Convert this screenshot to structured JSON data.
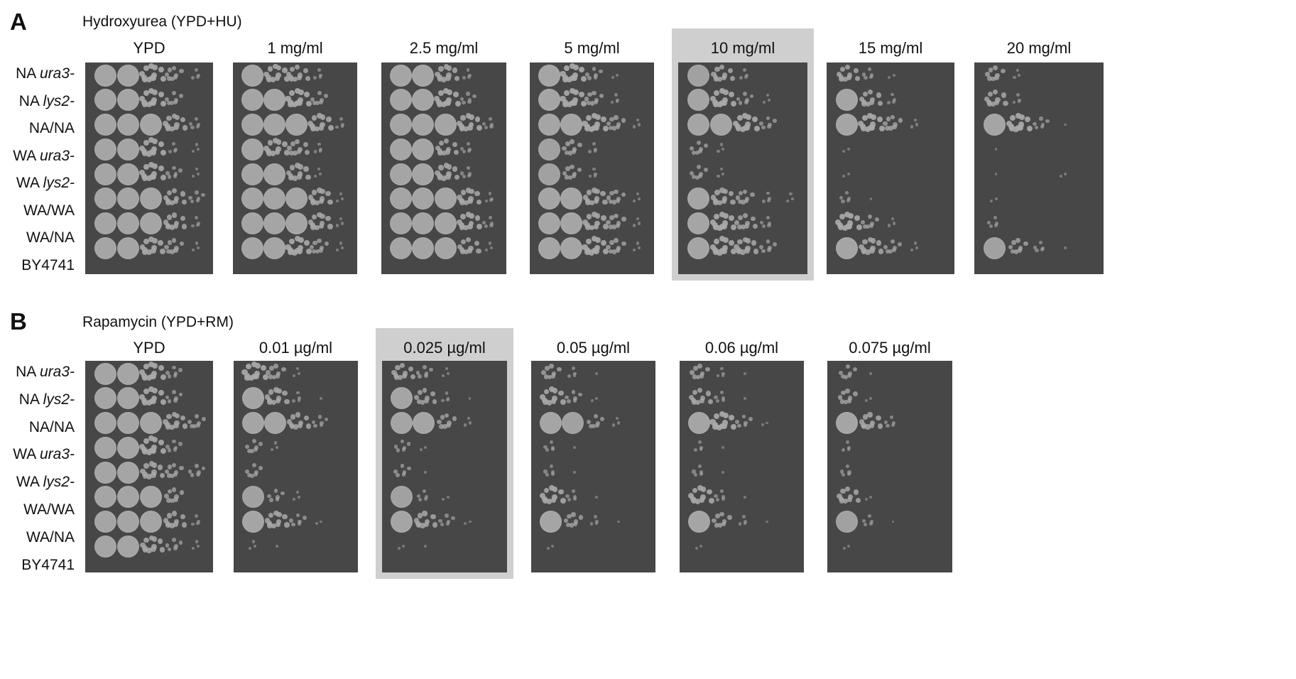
{
  "panelA": {
    "letter": "A",
    "title": "Hydroxyurea (YPD+HU)",
    "highlight_index": 4,
    "plates": [
      {
        "label": "YPD",
        "growth": [
          [
            1,
            1,
            0.85,
            0.55,
            0.3
          ],
          [
            1,
            1,
            0.85,
            0.5,
            0
          ],
          [
            1,
            1,
            1,
            0.75,
            0.35
          ],
          [
            1,
            1,
            0.85,
            0.3,
            0.2
          ],
          [
            1,
            1,
            0.85,
            0.4,
            0.2
          ],
          [
            1,
            1,
            1,
            0.7,
            0.4
          ],
          [
            1,
            1,
            1,
            0.7,
            0.3
          ],
          [
            1,
            1,
            0.8,
            0.6,
            0.2
          ]
        ]
      },
      {
        "label": "1 mg/ml",
        "growth": [
          [
            1,
            0.8,
            0.7,
            0.3,
            0
          ],
          [
            1,
            1,
            0.85,
            0.5,
            0
          ],
          [
            1,
            1,
            1,
            0.8,
            0.3
          ],
          [
            1,
            0.8,
            0.65,
            0.25,
            0
          ],
          [
            1,
            1,
            0.75,
            0.2,
            0
          ],
          [
            1,
            1,
            1,
            0.75,
            0.2
          ],
          [
            1,
            1,
            1,
            0.75,
            0.2
          ],
          [
            1,
            1,
            0.85,
            0.55,
            0.2
          ]
        ]
      },
      {
        "label": "2.5 mg/ml",
        "growth": [
          [
            1,
            1,
            0.75,
            0.3,
            0
          ],
          [
            1,
            1,
            0.85,
            0.4,
            0
          ],
          [
            1,
            1,
            1,
            0.8,
            0.35
          ],
          [
            1,
            1,
            0.7,
            0.35,
            0
          ],
          [
            1,
            1,
            0.75,
            0.35,
            0
          ],
          [
            1,
            1,
            1,
            0.75,
            0.25
          ],
          [
            1,
            1,
            1,
            0.8,
            0.35
          ],
          [
            1,
            1,
            1,
            0.7,
            0.2
          ]
        ]
      },
      {
        "label": "5 mg/ml",
        "growth": [
          [
            1,
            0.85,
            0.45,
            0.15,
            0
          ],
          [
            1,
            0.85,
            0.55,
            0.25,
            0
          ],
          [
            1,
            1,
            0.85,
            0.55,
            0.2
          ],
          [
            0.9,
            0.6,
            0.3,
            0,
            0
          ],
          [
            0.9,
            0.55,
            0.25,
            0,
            0
          ],
          [
            1,
            1,
            0.75,
            0.55,
            0.2
          ],
          [
            1,
            1,
            0.8,
            0.6,
            0.2
          ],
          [
            1,
            1,
            0.85,
            0.6,
            0.2
          ]
        ]
      },
      {
        "label": "10 mg/ml",
        "growth": [
          [
            0.9,
            0.7,
            0.3,
            0,
            0
          ],
          [
            1,
            0.85,
            0.45,
            0.2,
            0
          ],
          [
            1,
            1,
            0.85,
            0.45,
            0
          ],
          [
            0.5,
            0.2,
            0,
            0,
            0
          ],
          [
            0.5,
            0.2,
            0,
            0,
            0
          ],
          [
            1,
            0.75,
            0.55,
            0.3,
            0.2
          ],
          [
            1,
            0.85,
            0.65,
            0.35,
            0
          ],
          [
            1,
            0.85,
            0.75,
            0.45,
            0
          ]
        ]
      },
      {
        "label": "15 mg/ml",
        "growth": [
          [
            0.7,
            0.35,
            0.15,
            0,
            0
          ],
          [
            1,
            0.7,
            0.3,
            0,
            0
          ],
          [
            1,
            0.85,
            0.6,
            0.2,
            0
          ],
          [
            0.15,
            0,
            0,
            0,
            0
          ],
          [
            0.15,
            0,
            0,
            0,
            0
          ],
          [
            0.35,
            0.1,
            0,
            0,
            0
          ],
          [
            0.85,
            0.5,
            0.2,
            0,
            0
          ],
          [
            1,
            0.75,
            0.5,
            0.2,
            0
          ]
        ]
      },
      {
        "label": "20 mg/ml",
        "growth": [
          [
            0.6,
            0.2,
            0,
            0,
            0
          ],
          [
            0.7,
            0.25,
            0,
            0,
            0
          ],
          [
            1,
            0.85,
            0.4,
            0.1,
            0
          ],
          [
            0.1,
            0,
            0,
            0,
            0
          ],
          [
            0.1,
            0,
            0,
            0.15,
            0
          ],
          [
            0.15,
            0,
            0,
            0,
            0
          ],
          [
            0.35,
            0,
            0,
            0,
            0
          ],
          [
            0.9,
            0.6,
            0.35,
            0.1,
            0
          ]
        ]
      }
    ]
  },
  "panelB": {
    "letter": "B",
    "title": "Rapamycin (YPD+RM)",
    "highlight_index": 2,
    "plates": [
      {
        "label": "YPD",
        "growth": [
          [
            1,
            1,
            0.85,
            0.4,
            0
          ],
          [
            1,
            1,
            0.85,
            0.45,
            0
          ],
          [
            1,
            1,
            1,
            0.75,
            0.5
          ],
          [
            1,
            1,
            0.85,
            0.4,
            0
          ],
          [
            1,
            1,
            0.75,
            0.55,
            0.45
          ],
          [
            1,
            1,
            1,
            0.6,
            0
          ],
          [
            1,
            1,
            1,
            0.7,
            0.3
          ],
          [
            1,
            1,
            0.75,
            0.45,
            0.2
          ]
        ]
      },
      {
        "label": "0.01 µg/ml",
        "growth": [
          [
            0.85,
            0.6,
            0.2,
            0,
            0
          ],
          [
            1,
            0.75,
            0.3,
            0.1,
            0
          ],
          [
            1,
            1,
            0.7,
            0.4,
            0
          ],
          [
            0.5,
            0.2,
            0,
            0,
            0
          ],
          [
            0.5,
            0,
            0,
            0,
            0
          ],
          [
            0.9,
            0.45,
            0.2,
            0,
            0
          ],
          [
            1,
            0.75,
            0.45,
            0.15,
            0
          ],
          [
            0.2,
            0.1,
            0,
            0,
            0
          ]
        ]
      },
      {
        "label": "0.025 µg/ml",
        "growth": [
          [
            0.7,
            0.45,
            0.2,
            0,
            0
          ],
          [
            1,
            0.65,
            0.25,
            0.1,
            0
          ],
          [
            1,
            1,
            0.6,
            0.2,
            0
          ],
          [
            0.4,
            0.15,
            0,
            0,
            0
          ],
          [
            0.45,
            0.1,
            0,
            0,
            0
          ],
          [
            0.9,
            0.35,
            0.15,
            0,
            0
          ],
          [
            1,
            0.7,
            0.4,
            0.15,
            0
          ],
          [
            0.15,
            0.1,
            0,
            0,
            0
          ]
        ]
      },
      {
        "label": "0.05 µg/ml",
        "growth": [
          [
            0.6,
            0.3,
            0.1,
            0,
            0
          ],
          [
            0.8,
            0.45,
            0.15,
            0,
            0
          ],
          [
            1,
            0.9,
            0.5,
            0.2,
            0
          ],
          [
            0.35,
            0.1,
            0,
            0,
            0
          ],
          [
            0.35,
            0.1,
            0,
            0,
            0
          ],
          [
            0.8,
            0.35,
            0.1,
            0,
            0
          ],
          [
            1,
            0.55,
            0.25,
            0.1,
            0
          ],
          [
            0.15,
            0,
            0,
            0,
            0
          ]
        ]
      },
      {
        "label": "0.06 µg/ml",
        "growth": [
          [
            0.6,
            0.25,
            0.1,
            0,
            0
          ],
          [
            0.7,
            0.35,
            0.1,
            0,
            0
          ],
          [
            1,
            0.85,
            0.45,
            0.15,
            0
          ],
          [
            0.3,
            0.1,
            0,
            0,
            0
          ],
          [
            0.35,
            0.1,
            0,
            0,
            0
          ],
          [
            0.8,
            0.35,
            0.1,
            0,
            0
          ],
          [
            1,
            0.6,
            0.25,
            0.1,
            0
          ],
          [
            0.15,
            0,
            0,
            0,
            0
          ]
        ]
      },
      {
        "label": "0.075 µg/ml",
        "growth": [
          [
            0.5,
            0.1,
            0,
            0,
            0
          ],
          [
            0.6,
            0.15,
            0,
            0,
            0
          ],
          [
            1,
            0.7,
            0.35,
            0,
            0
          ],
          [
            0.3,
            0,
            0,
            0,
            0
          ],
          [
            0.35,
            0,
            0,
            0,
            0
          ],
          [
            0.7,
            0.15,
            0,
            0,
            0
          ],
          [
            0.9,
            0.35,
            0.1,
            0,
            0
          ],
          [
            0.15,
            0,
            0,
            0,
            0
          ]
        ]
      }
    ]
  },
  "strains": [
    {
      "prefix": "NA ",
      "italic": "ura3-"
    },
    {
      "prefix": "NA ",
      "italic": "lys2-"
    },
    {
      "prefix": "NA/NA",
      "italic": ""
    },
    {
      "prefix": "WA ",
      "italic": "ura3-"
    },
    {
      "prefix": "WA ",
      "italic": "lys2-"
    },
    {
      "prefix": "WA/WA",
      "italic": ""
    },
    {
      "prefix": "WA/NA",
      "italic": ""
    },
    {
      "prefix": "BY4741",
      "italic": ""
    }
  ],
  "colors": {
    "plate": "#474747",
    "highlight": "#cfcfcf",
    "colony": "#a9a9a9"
  }
}
